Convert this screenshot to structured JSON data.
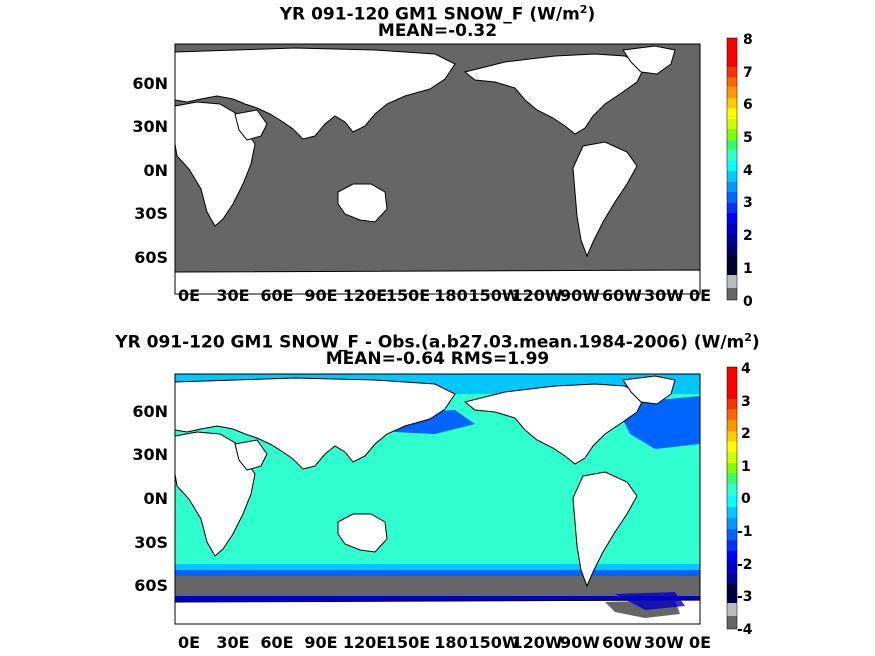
{
  "panel1": {
    "title_main": "YR 091-120 GM1  SNOW_F (W/m",
    "title_sup": "2",
    "title_end": ")",
    "subtitle": "MEAN=-0.32",
    "colorbar_ticks": [
      "8",
      "7",
      "6",
      "5",
      "4",
      "3",
      "2",
      "1",
      "0"
    ]
  },
  "panel2": {
    "title_main": "YR 091-120 GM1 SNOW_F - Obs.(a.b27.03.mean.1984-2006) (W/m",
    "title_sup": "2",
    "title_end": ")",
    "subtitle": "MEAN=-0.64 RMS=1.99",
    "colorbar_ticks": [
      "4",
      "3",
      "2",
      "1",
      "0",
      "-1",
      "-2",
      "-3",
      "-4"
    ]
  },
  "lat_labels": [
    "60N",
    "30N",
    "0N",
    "30S",
    "60S"
  ],
  "lon_labels": [
    "0E",
    "30E",
    "60E",
    "90E",
    "120E",
    "150E",
    "180",
    "150W",
    "120W",
    "90W",
    "60W",
    "30W",
    "0E"
  ],
  "colors": {
    "ocean_gray": "#666666",
    "land": "#ffffff",
    "diff_cyan": "#2fffcf",
    "diff_light_blue": "#00c8ff",
    "diff_blue": "#0064ff",
    "diff_dark_blue": "#0000c8"
  }
}
